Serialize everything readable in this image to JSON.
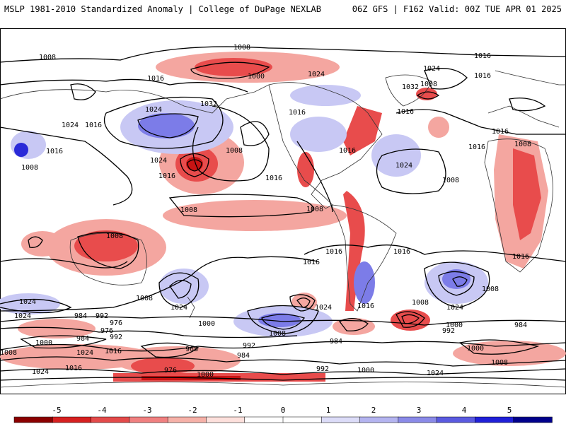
{
  "header": {
    "left": "MSLP 1981-2010 Standardized Anomaly | College of DuPage NEXLAB",
    "right": "06Z GFS | F162 Valid: 00Z TUE APR 01 2025"
  },
  "isobar_labels": [
    "1008",
    "1008",
    "1016",
    "1016",
    "1016",
    "1024",
    "1024",
    "1024",
    "1024",
    "1032",
    "1032",
    "1000",
    "1008",
    "1008",
    "1016",
    "1016",
    "1016",
    "1016",
    "1016",
    "1016",
    "1016",
    "1024",
    "1024",
    "1024",
    "1024",
    "1024",
    "1008",
    "1008",
    "1008",
    "1008",
    "1008",
    "984",
    "992",
    "976",
    "976",
    "992",
    "1000",
    "984",
    "1024",
    "1016",
    "1008",
    "968",
    "976",
    "984",
    "992",
    "1000",
    "1000",
    "984",
    "992",
    "1000",
    "1008",
    "1016",
    "1024",
    "1000",
    "1008",
    "1016",
    "1016",
    "1024",
    "984",
    "992",
    "1000",
    "1008",
    "1024",
    "1016",
    "1016",
    "1016",
    "1008",
    "1008",
    "1016",
    "1016",
    "1024",
    "1008"
  ],
  "colorbar": {
    "ticks": [
      "-5",
      "-4",
      "-3",
      "-2",
      "-1",
      "0",
      "1",
      "2",
      "3",
      "4",
      "5"
    ],
    "colors": [
      "#8b0000",
      "#d62020",
      "#e34a4a",
      "#f08080",
      "#f6b1a8",
      "#fde0dc",
      "#ffffff",
      "#ffffff",
      "#dcdcf8",
      "#b4b4f0",
      "#8a8ae8",
      "#5a5ae0",
      "#2020d8",
      "#00008b"
    ]
  },
  "colors": {
    "neg_strong": "#c81414",
    "neg_mid": "#e84c4c",
    "neg_light": "#f4a6a0",
    "pos_light": "#c8c8f4",
    "pos_mid": "#7c7ce8",
    "pos_strong": "#2a2ad8",
    "land_outline": "#333333",
    "isobar": "#000000"
  }
}
